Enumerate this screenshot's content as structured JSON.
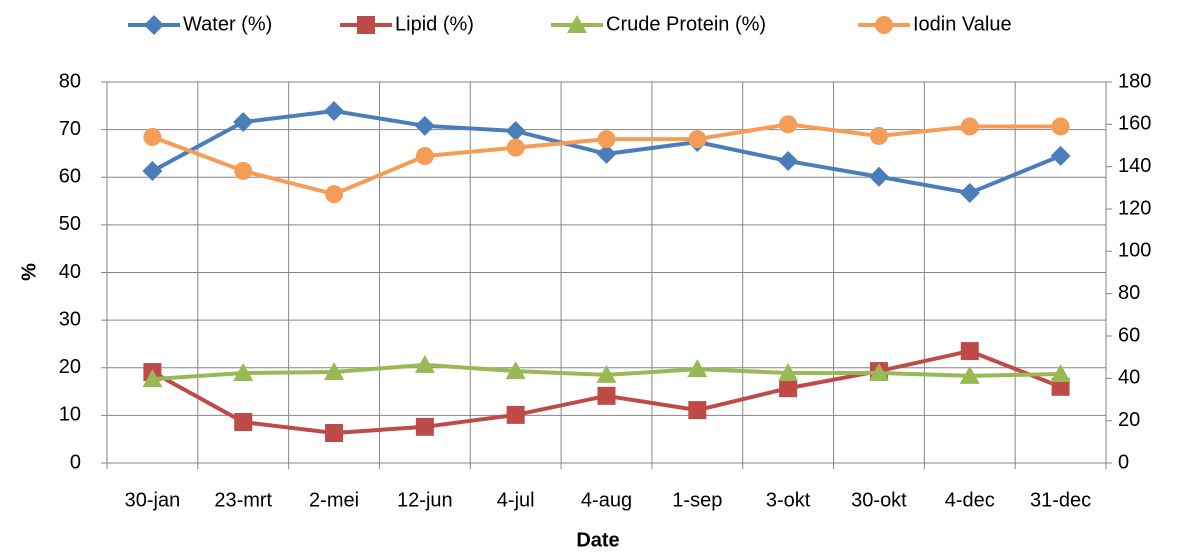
{
  "chart_data": {
    "type": "line",
    "xlabel": "Date",
    "ylabel": "%",
    "categories": [
      "30-jan",
      "23-mrt",
      "2-mei",
      "12-jun",
      "4-jul",
      "4-aug",
      "1-sep",
      "3-okt",
      "30-okt",
      "4-dec",
      "31-dec"
    ],
    "series": [
      {
        "name": "Water (%)",
        "color": "#4a7ebb",
        "marker": "diamond",
        "values": [
          61.3,
          71.6,
          73.9,
          70.8,
          69.7,
          64.9,
          67.4,
          63.4,
          60.1,
          56.7,
          64.5
        ]
      },
      {
        "name": "Lipid (%)",
        "color": "#be4b48",
        "marker": "square",
        "values": [
          19.1,
          8.6,
          6.3,
          7.6,
          10.1,
          14.1,
          11.1,
          15.7,
          19.3,
          23.5,
          16
        ]
      },
      {
        "name": "Crude Protein (%)",
        "color": "#98b954",
        "marker": "triangle",
        "values": [
          17.6,
          18.9,
          19.1,
          20.6,
          19.3,
          18.5,
          19.7,
          18.9,
          18.9,
          18.3,
          18.7
        ]
      },
      {
        "name": "Iodin Value",
        "color": "#f59d56",
        "marker": "circle",
        "axis": "y2",
        "values": [
          154,
          138,
          127,
          145,
          149,
          153,
          153,
          160,
          154.5,
          159,
          159
        ]
      }
    ],
    "ylim": [
      0,
      80
    ],
    "yticks": [
      0,
      10,
      20,
      30,
      40,
      50,
      60,
      70,
      80
    ],
    "y2lim": [
      0,
      180
    ],
    "y2ticks": [
      0,
      20,
      40,
      60,
      80,
      100,
      120,
      140,
      160,
      180
    ],
    "grid": true,
    "legend": "top"
  }
}
